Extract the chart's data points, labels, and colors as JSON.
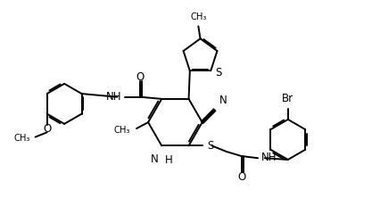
{
  "bg": "#ffffff",
  "lc": "#000000",
  "lw": 1.4,
  "fs": 8.5,
  "fw": 4.17,
  "fh": 2.5,
  "dpi": 100,
  "xlim": [
    -4.8,
    4.8
  ],
  "ylim": [
    -2.6,
    2.8
  ]
}
